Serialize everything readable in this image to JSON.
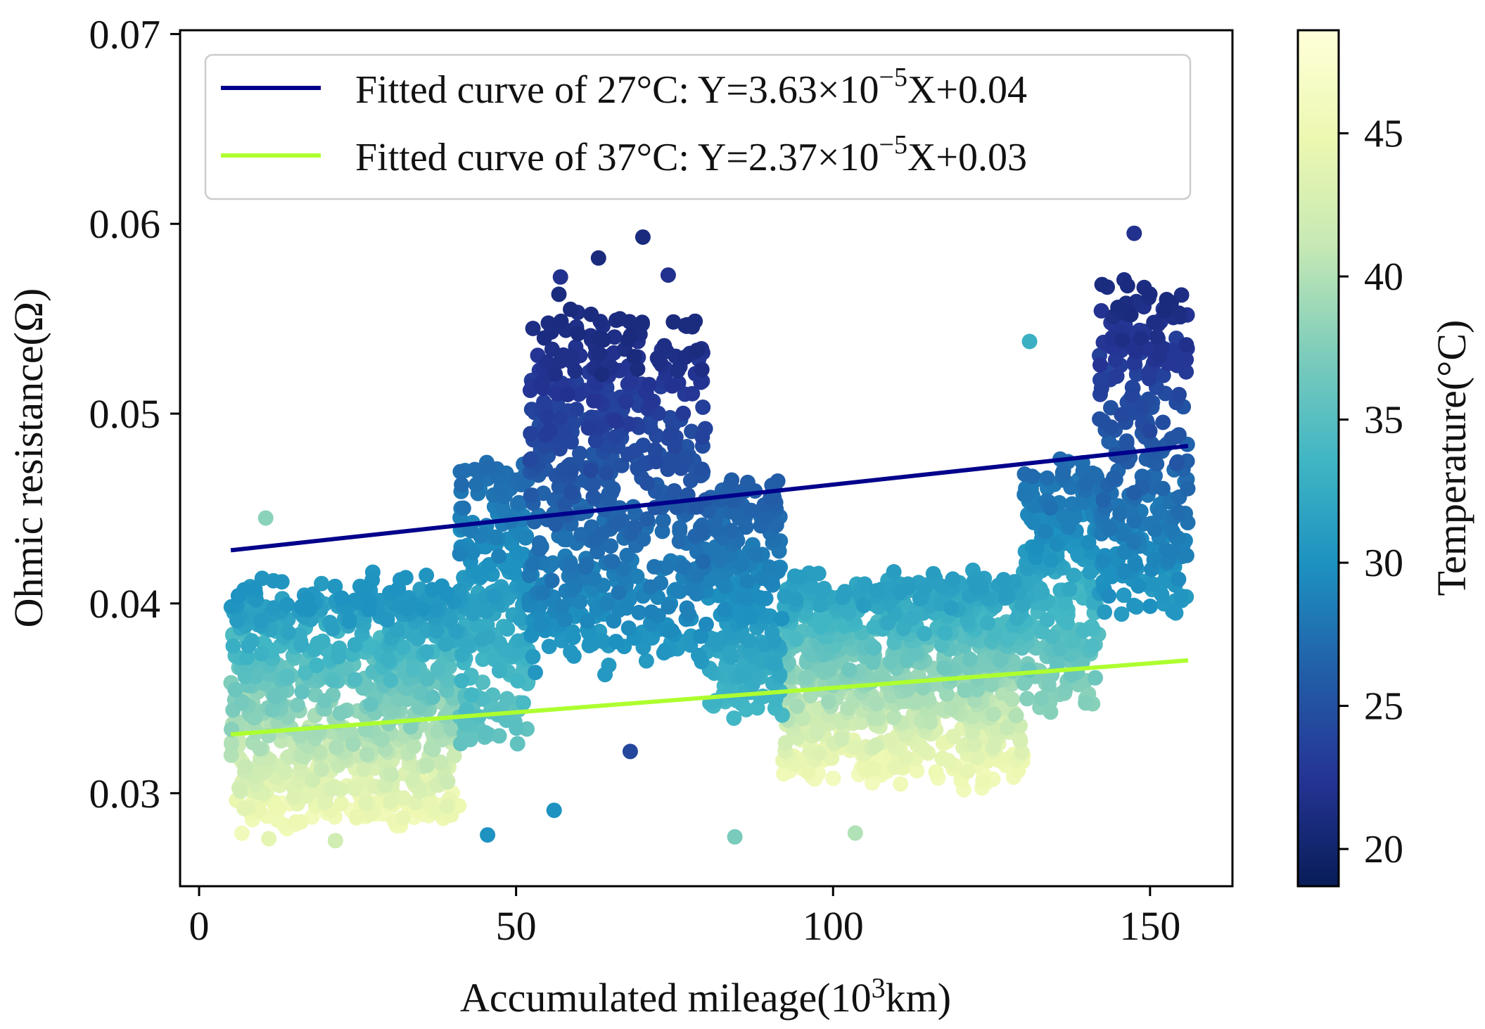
{
  "chart_data": {
    "type": "scatter",
    "xlabel": "Accumulated mileage(10",
    "xlabel_sup": "3",
    "xlabel_tail": "km)",
    "ylabel": "Ohmic resistance(Ω)",
    "xlim": [
      -3,
      163
    ],
    "ylim": [
      0.0251,
      0.0702
    ],
    "x_ticks": [
      0,
      50,
      100,
      150
    ],
    "x_tick_labels": [
      "0",
      "50",
      "100",
      "150"
    ],
    "y_ticks": [
      0.03,
      0.04,
      0.05,
      0.06,
      0.07
    ],
    "y_tick_labels": [
      "0.03",
      "0.04",
      "0.05",
      "0.06",
      "0.07"
    ],
    "colorbar": {
      "label": "Temperature(°C)",
      "range": [
        18.7,
        48.6
      ],
      "ticks": [
        20,
        25,
        30,
        35,
        40,
        45
      ],
      "tick_labels": [
        "20",
        "25",
        "30",
        "35",
        "40",
        "45"
      ],
      "colormap": "YlGnBu_r",
      "stops": [
        "#081d58",
        "#253494",
        "#225ea8",
        "#1d91c0",
        "#41b6c4",
        "#7fcdbb",
        "#c7e9b4",
        "#edf8b1",
        "#ffffd9"
      ]
    },
    "fitted_lines": [
      {
        "name": "27C",
        "legend_main": "Fitted curve of 27°C: Y=3.63×10",
        "legend_sup": "−5",
        "legend_tail": "X+0.04",
        "color": "#00008b",
        "x": [
          5,
          156
        ],
        "y": [
          0.0428,
          0.0483
        ]
      },
      {
        "name": "37C",
        "legend_main": "Fitted curve of 37°C: Y=2.37×10",
        "legend_sup": "−5",
        "legend_tail": "X+0.03",
        "color": "#adff2f",
        "x": [
          5,
          156
        ],
        "y": [
          0.0331,
          0.037
        ]
      }
    ],
    "scatter_series": {
      "name": "Ohmic resistance vs mileage",
      "color_by": "temperature",
      "point_count": "approximately 3000 points, summarized by trend segments",
      "segments": [
        {
          "x_range": [
            5,
            41
          ],
          "temp_range": [
            30,
            46
          ],
          "r_low": 0.0285,
          "r_high": 0.0405
        },
        {
          "x_range": [
            41,
            52
          ],
          "temp_range": [
            27,
            36
          ],
          "r_low": 0.033,
          "r_high": 0.047
        },
        {
          "x_range": [
            52,
            80
          ],
          "temp_range": [
            21,
            31
          ],
          "r_low": 0.037,
          "r_high": 0.0545
        },
        {
          "x_range": [
            80,
            92
          ],
          "temp_range": [
            26,
            34
          ],
          "r_low": 0.0345,
          "r_high": 0.046
        },
        {
          "x_range": [
            92,
            130
          ],
          "temp_range": [
            31,
            46
          ],
          "r_low": 0.031,
          "r_high": 0.041
        },
        {
          "x_range": [
            130,
            142
          ],
          "temp_range": [
            27,
            38
          ],
          "r_low": 0.035,
          "r_high": 0.047
        },
        {
          "x_range": [
            142,
            156
          ],
          "temp_range": [
            21,
            31
          ],
          "r_low": 0.04,
          "r_high": 0.056
        }
      ],
      "notable_points": [
        {
          "x": 70,
          "y": 0.0593,
          "temp": 21
        },
        {
          "x": 63,
          "y": 0.0582,
          "temp": 21
        },
        {
          "x": 147.5,
          "y": 0.0595,
          "temp": 22
        },
        {
          "x": 74,
          "y": 0.0573,
          "temp": 22
        },
        {
          "x": 57,
          "y": 0.0572,
          "temp": 22
        },
        {
          "x": 131,
          "y": 0.0538,
          "temp": 33
        },
        {
          "x": 10.5,
          "y": 0.0445,
          "temp": 38
        },
        {
          "x": 68,
          "y": 0.0322,
          "temp": 24
        },
        {
          "x": 45.5,
          "y": 0.0278,
          "temp": 30
        },
        {
          "x": 56,
          "y": 0.0291,
          "temp": 30
        },
        {
          "x": 84.5,
          "y": 0.0277,
          "temp": 37
        },
        {
          "x": 103.5,
          "y": 0.0279,
          "temp": 40
        },
        {
          "x": 21.5,
          "y": 0.0275,
          "temp": 42
        },
        {
          "x": 11,
          "y": 0.0276,
          "temp": 44
        }
      ]
    }
  }
}
